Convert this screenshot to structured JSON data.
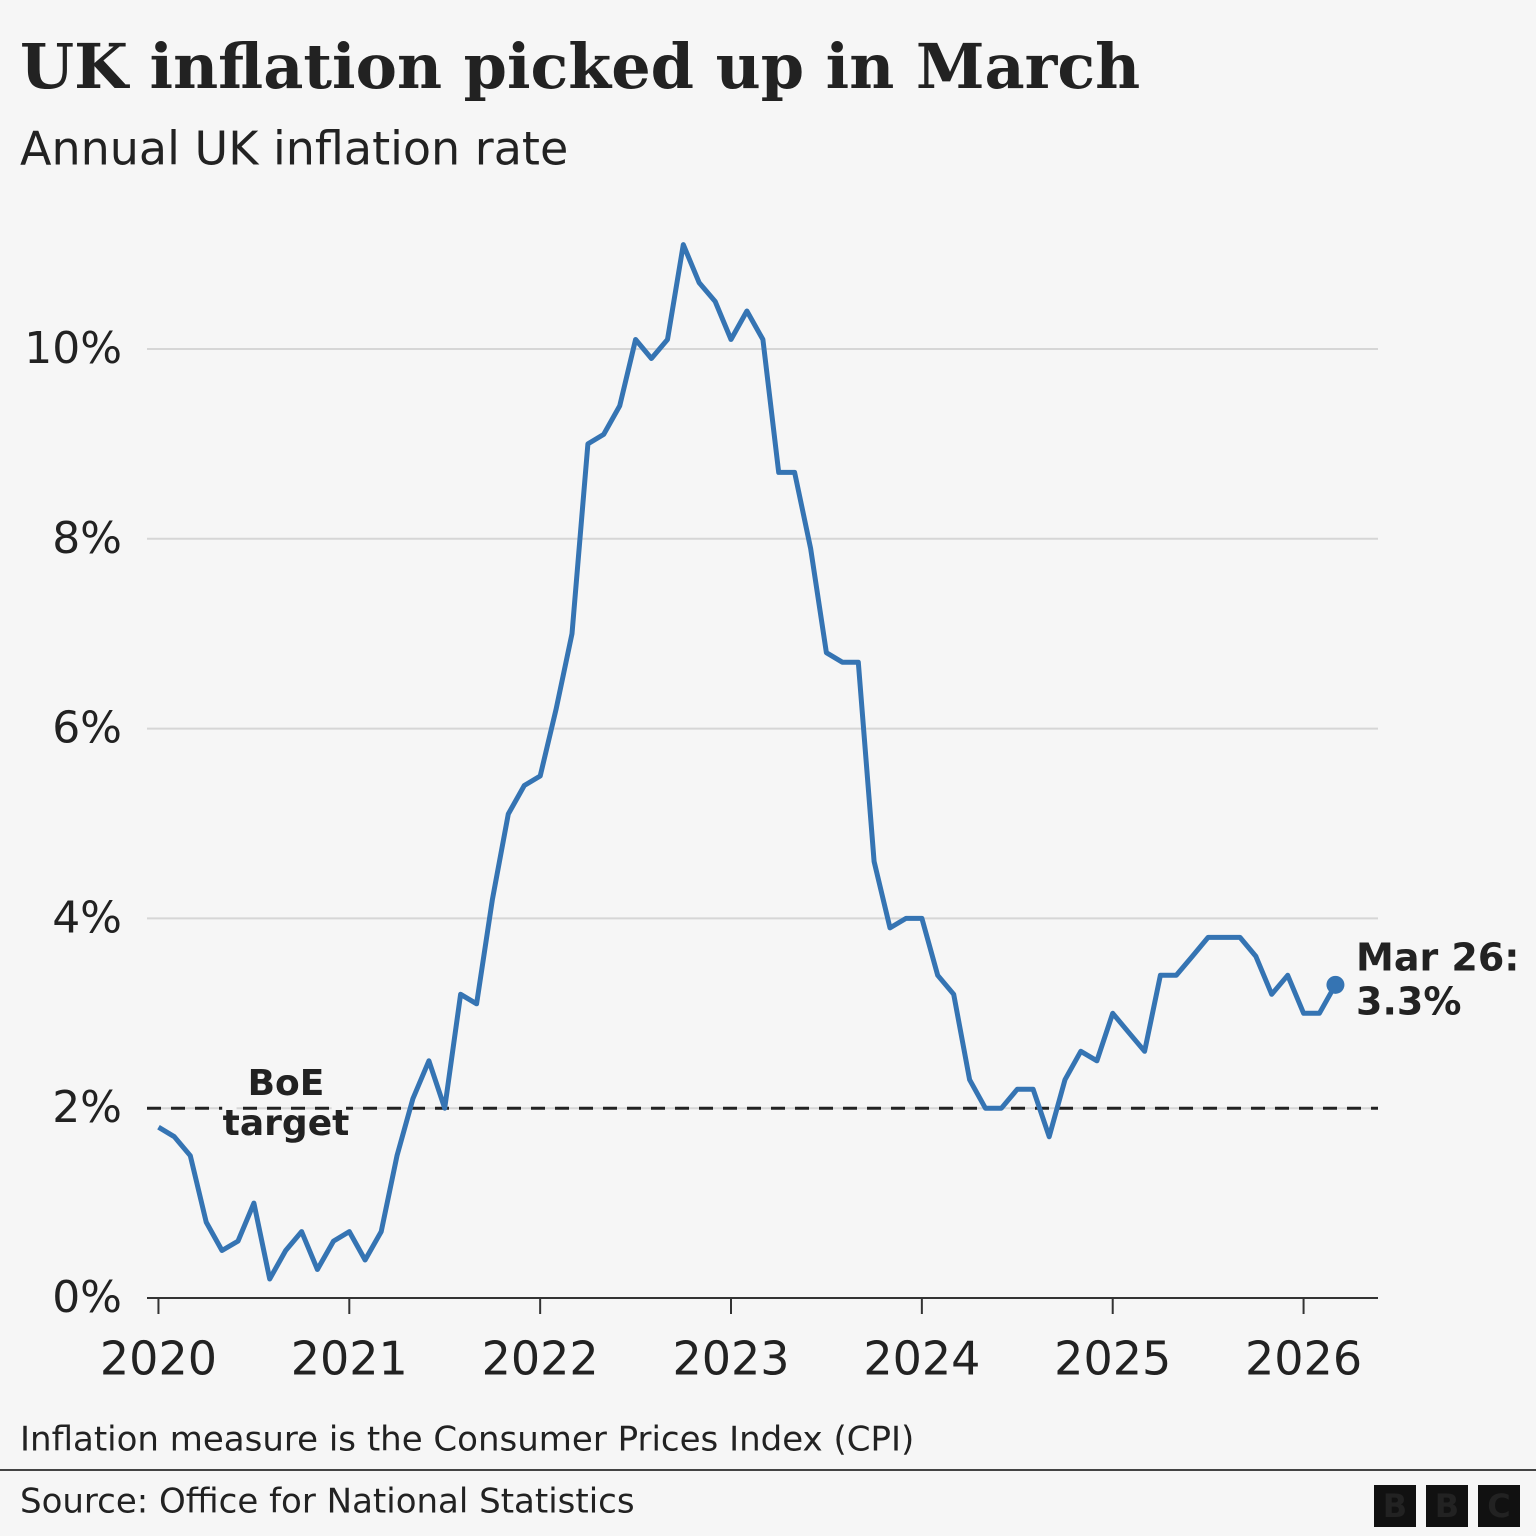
{
  "chart_data": {
    "type": "line",
    "title": "UK inflation picked up in March",
    "subtitle": "Annual UK inflation rate",
    "x": [
      2020,
      2020.083,
      2020.167,
      2020.25,
      2020.333,
      2020.417,
      2020.5,
      2020.583,
      2020.667,
      2020.75,
      2020.833,
      2020.917,
      2021,
      2021.083,
      2021.167,
      2021.25,
      2021.333,
      2021.417,
      2021.5,
      2021.583,
      2021.667,
      2021.75,
      2021.833,
      2021.917,
      2022,
      2022.083,
      2022.167,
      2022.25,
      2022.333,
      2022.417,
      2022.5,
      2022.583,
      2022.667,
      2022.75,
      2022.833,
      2022.917,
      2023,
      2023.083,
      2023.167,
      2023.25,
      2023.333,
      2023.417,
      2023.5,
      2023.583,
      2023.667,
      2023.75,
      2023.833,
      2023.917,
      2024,
      2024.083,
      2024.167,
      2024.25,
      2024.333,
      2024.417,
      2024.5,
      2024.583,
      2024.667,
      2024.75,
      2024.833,
      2024.917,
      2025,
      2025.083,
      2025.167,
      2025.25,
      2025.333,
      2025.417,
      2025.5,
      2025.583,
      2025.667,
      2025.75,
      2025.833,
      2025.917,
      2026,
      2026.083,
      2026.167
    ],
    "series": [
      {
        "name": "Annual UK inflation rate",
        "color": "#3574b3",
        "values": [
          1.8,
          1.7,
          1.5,
          0.8,
          0.5,
          0.6,
          1.0,
          0.2,
          0.5,
          0.7,
          0.3,
          0.6,
          0.7,
          0.4,
          0.7,
          1.5,
          2.1,
          2.5,
          2.0,
          3.2,
          3.1,
          4.2,
          5.1,
          5.4,
          5.5,
          6.2,
          7.0,
          9.0,
          9.1,
          9.4,
          10.1,
          9.9,
          10.1,
          11.1,
          10.7,
          10.5,
          10.1,
          10.4,
          10.1,
          8.7,
          8.7,
          7.9,
          6.8,
          6.7,
          6.7,
          4.6,
          3.9,
          4.0,
          4.0,
          3.4,
          3.2,
          2.3,
          2.0,
          2.0,
          2.2,
          2.2,
          1.7,
          2.3,
          2.6,
          2.5,
          3.0,
          2.8,
          2.6,
          3.4,
          3.4,
          3.6,
          3.8,
          3.8,
          3.8,
          3.6,
          3.2,
          3.4,
          3.0,
          3.0,
          3.3
        ]
      }
    ],
    "point_label": {
      "text": "Mar 26:",
      "value_label": "3.3%"
    },
    "reference_line": {
      "value": 2,
      "label_lines": [
        "BoE",
        "target"
      ],
      "style": "dashed",
      "color": "#222222"
    },
    "xlim": [
      2019.94,
      2026.39
    ],
    "xticks": [
      2020,
      2021,
      2022,
      2023,
      2024,
      2025,
      2026
    ],
    "ylim": [
      0,
      11.5
    ],
    "yticks": [
      {
        "value": 0,
        "label": "0%"
      },
      {
        "value": 2,
        "label": "2%"
      },
      {
        "value": 4,
        "label": "4%"
      },
      {
        "value": 6,
        "label": "6%"
      },
      {
        "value": 8,
        "label": "8%"
      },
      {
        "value": 10,
        "label": "10%"
      }
    ],
    "grid": true,
    "footnote": "Inflation measure is the Consumer Prices Index (CPI)",
    "source": "Source: Office for National Statistics",
    "branding": [
      "B",
      "B",
      "C"
    ]
  }
}
